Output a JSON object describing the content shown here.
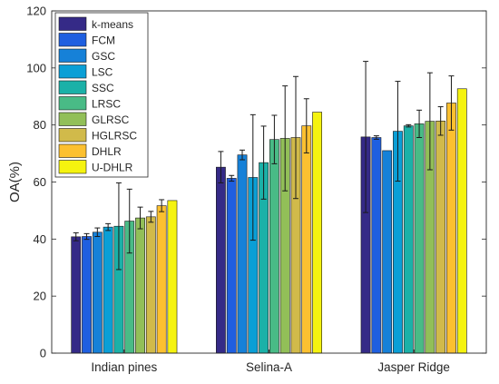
{
  "chart_data": {
    "type": "bar",
    "title": "",
    "xlabel": "",
    "ylabel": "OA(%)",
    "ylim": [
      0,
      120
    ],
    "yticks": [
      0,
      20,
      40,
      60,
      80,
      100,
      120
    ],
    "grid": false,
    "legend_position": "top-left",
    "categories": [
      "Indian pines",
      "Selina-A",
      "Jasper Ridge"
    ],
    "series": [
      {
        "name": "k-means",
        "color": "#352a87",
        "values": [
          40.8,
          65.2,
          75.8
        ],
        "err": [
          1.4,
          5.5,
          26.5
        ]
      },
      {
        "name": "FCM",
        "color": "#1f5fe0",
        "values": [
          40.9,
          61.3,
          75.6
        ],
        "err": [
          1.0,
          1.0,
          0.6
        ]
      },
      {
        "name": "GSC",
        "color": "#1681d8",
        "values": [
          42.4,
          69.5,
          71.0
        ],
        "err": [
          1.5,
          1.7,
          0
        ]
      },
      {
        "name": "LSC",
        "color": "#0a9fd6",
        "values": [
          44.2,
          61.6,
          77.8
        ],
        "err": [
          1.2,
          22.0,
          17.5
        ]
      },
      {
        "name": "SSC",
        "color": "#1bb1a8",
        "values": [
          44.5,
          66.8,
          79.7
        ],
        "err": [
          15.2,
          12.8,
          0.4
        ]
      },
      {
        "name": "LRSC",
        "color": "#49bb86",
        "values": [
          46.3,
          74.9,
          80.4
        ],
        "err": [
          11.2,
          8.5,
          4.8
        ]
      },
      {
        "name": "GLRSC",
        "color": "#92bf58",
        "values": [
          47.4,
          75.3,
          81.3
        ],
        "err": [
          3.8,
          18.4,
          17.0
        ]
      },
      {
        "name": "HGLRSC",
        "color": "#d1ba4a",
        "values": [
          47.8,
          75.6,
          81.4
        ],
        "err": [
          1.9,
          21.4,
          5.0
        ]
      },
      {
        "name": "DHLR",
        "color": "#fcc030",
        "values": [
          51.7,
          79.7,
          87.7
        ],
        "err": [
          2.1,
          9.5,
          9.5
        ]
      },
      {
        "name": "U-DHLR",
        "color": "#f5f30f",
        "values": [
          53.5,
          84.5,
          92.7
        ],
        "err": [
          0,
          0,
          0
        ]
      }
    ]
  }
}
